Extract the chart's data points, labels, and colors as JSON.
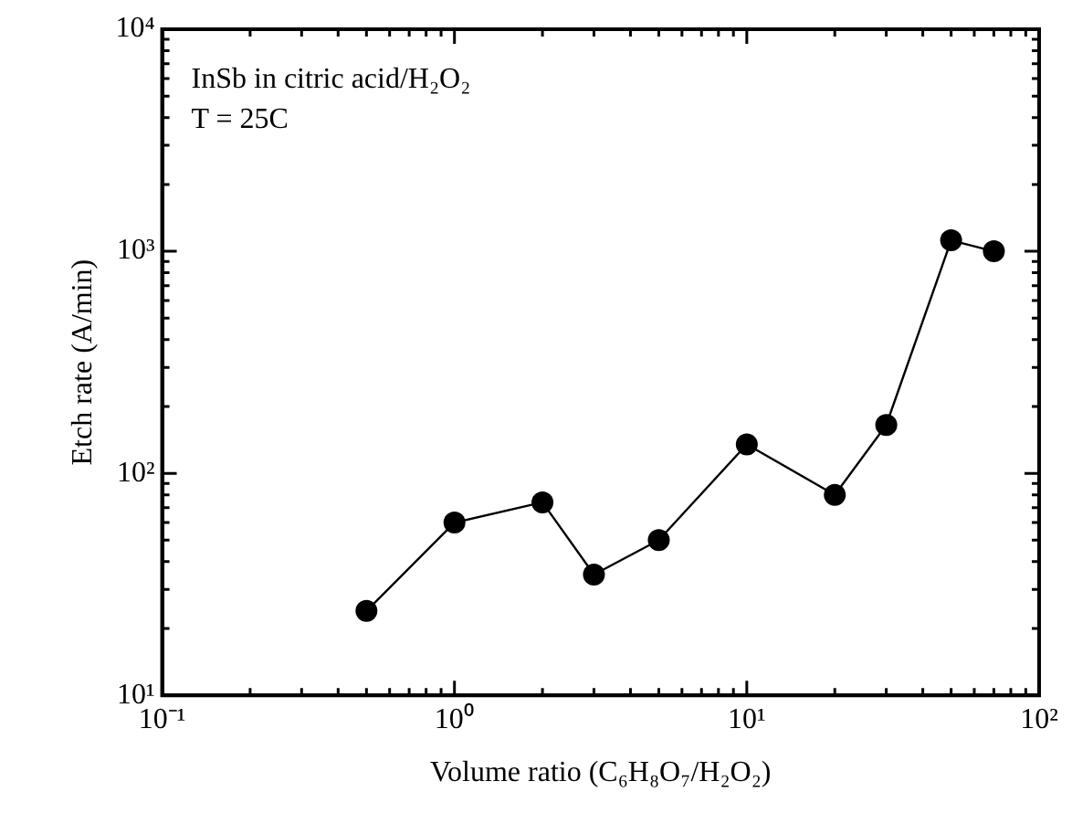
{
  "chart_data": {
    "type": "line",
    "xlabel": "Volume ratio (C₆H₈O₇/H₂O₂)",
    "ylabel": "Etch rate (A/min)",
    "annotations": [
      "InSb in citric acid/H₂O₂",
      "T = 25C"
    ],
    "x": [
      0.5,
      1,
      2,
      3,
      5,
      10,
      20,
      30,
      50,
      70
    ],
    "series": [
      {
        "color": "#000000",
        "values": [
          24,
          60,
          74,
          35,
          50,
          135,
          80,
          165,
          1120,
          1000
        ]
      }
    ],
    "log": "xy",
    "xlim": [
      0.1,
      100
    ],
    "ylim": [
      10,
      10000
    ],
    "xticks": [
      {
        "value": 0.1,
        "label": "10⁻¹"
      },
      {
        "value": 0.2,
        "label": null
      },
      {
        "value": 0.3,
        "label": null
      },
      {
        "value": 0.4,
        "label": null
      },
      {
        "value": 0.5,
        "label": null
      },
      {
        "value": 0.6,
        "label": null
      },
      {
        "value": 0.7,
        "label": null
      },
      {
        "value": 0.8,
        "label": null
      },
      {
        "value": 0.9,
        "label": null
      },
      {
        "value": 1,
        "label": "10⁰"
      },
      {
        "value": 2,
        "label": null
      },
      {
        "value": 3,
        "label": null
      },
      {
        "value": 4,
        "label": null
      },
      {
        "value": 5,
        "label": null
      },
      {
        "value": 6,
        "label": null
      },
      {
        "value": 7,
        "label": null
      },
      {
        "value": 8,
        "label": null
      },
      {
        "value": 9,
        "label": null
      },
      {
        "value": 10,
        "label": "10¹"
      },
      {
        "value": 20,
        "label": null
      },
      {
        "value": 30,
        "label": null
      },
      {
        "value": 40,
        "label": null
      },
      {
        "value": 50,
        "label": null
      },
      {
        "value": 60,
        "label": null
      },
      {
        "value": 70,
        "label": null
      },
      {
        "value": 80,
        "label": null
      },
      {
        "value": 90,
        "label": null
      },
      {
        "value": 100,
        "label": "10²"
      }
    ],
    "yticks": [
      {
        "value": 10,
        "label": "10¹"
      },
      {
        "value": 20,
        "label": null
      },
      {
        "value": 30,
        "label": null
      },
      {
        "value": 40,
        "label": null
      },
      {
        "value": 50,
        "label": null
      },
      {
        "value": 60,
        "label": null
      },
      {
        "value": 70,
        "label": null
      },
      {
        "value": 80,
        "label": null
      },
      {
        "value": 90,
        "label": null
      },
      {
        "value": 100,
        "label": "10²"
      },
      {
        "value": 200,
        "label": null
      },
      {
        "value": 300,
        "label": null
      },
      {
        "value": 400,
        "label": null
      },
      {
        "value": 500,
        "label": null
      },
      {
        "value": 600,
        "label": null
      },
      {
        "value": 700,
        "label": null
      },
      {
        "value": 800,
        "label": null
      },
      {
        "value": 900,
        "label": null
      },
      {
        "value": 1000,
        "label": "10³"
      },
      {
        "value": 2000,
        "label": null
      },
      {
        "value": 3000,
        "label": null
      },
      {
        "value": 4000,
        "label": null
      },
      {
        "value": 5000,
        "label": null
      },
      {
        "value": 6000,
        "label": null
      },
      {
        "value": 7000,
        "label": null
      },
      {
        "value": 8000,
        "label": null
      },
      {
        "value": 9000,
        "label": null
      },
      {
        "value": 10000,
        "label": "10⁴"
      }
    ],
    "grid": false,
    "marker": "circle",
    "line_style": "solid",
    "legend": false
  }
}
